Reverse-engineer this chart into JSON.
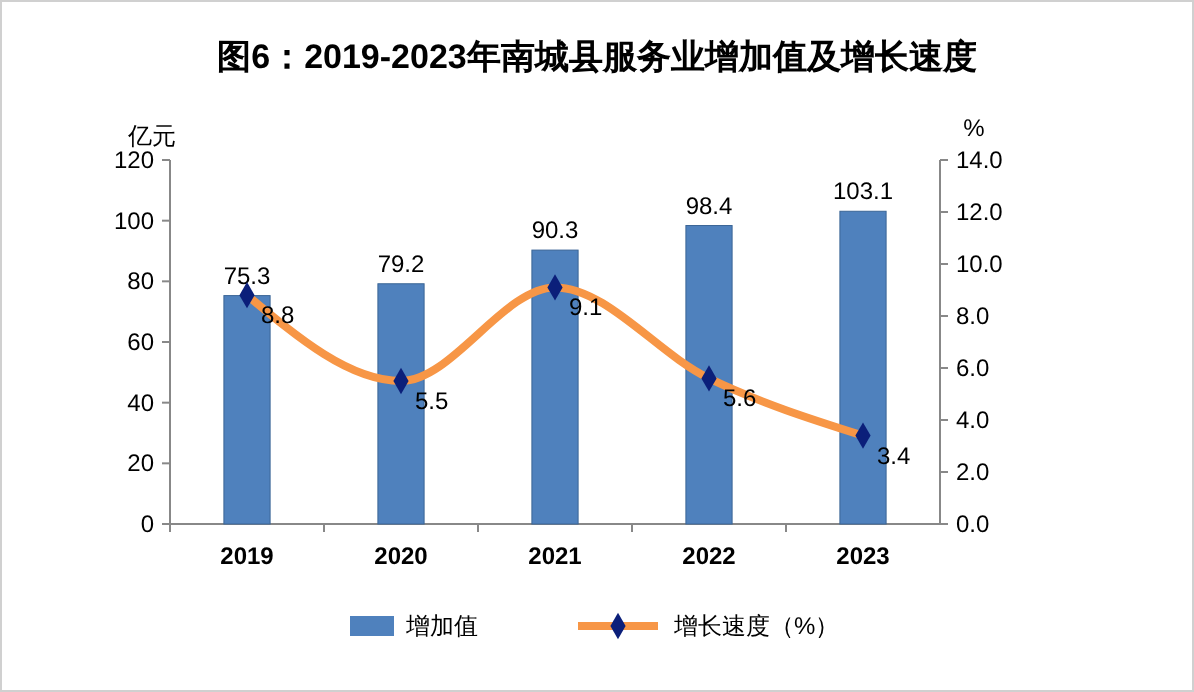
{
  "chart_data": {
    "type": "bar",
    "title": "图6：2019-2023年南城县服务业增加值及增长速度",
    "ylabel": "亿元",
    "y2label": "%",
    "categories": [
      "2019",
      "2020",
      "2021",
      "2022",
      "2023"
    ],
    "series": [
      {
        "name": "增加值",
        "color": "#4f81bd",
        "values": [
          75.3,
          79.2,
          90.3,
          98.4,
          103.1
        ]
      },
      {
        "name": "增长速度（%）",
        "type": "line",
        "axis": "y2",
        "color": "#f79646",
        "marker": "diamond",
        "values": [
          8.8,
          5.5,
          9.1,
          5.6,
          3.4
        ]
      }
    ],
    "ylim": [
      0,
      120
    ],
    "yticks": [
      0,
      20,
      40,
      60,
      80,
      100,
      120
    ],
    "y2lim": [
      0,
      14
    ],
    "y2ticks": [
      {
        "value": 0,
        "label": "0.0"
      },
      {
        "value": 2,
        "label": "2.0"
      },
      {
        "value": 4,
        "label": "4.0"
      },
      {
        "value": 6,
        "label": "6.0"
      },
      {
        "value": 8,
        "label": "8.0"
      },
      {
        "value": 10,
        "label": "10.0"
      },
      {
        "value": 12,
        "label": "12.0"
      },
      {
        "value": 14,
        "label": "14.0"
      }
    ],
    "data_labels": true,
    "legend": "bottom",
    "grid": false
  }
}
